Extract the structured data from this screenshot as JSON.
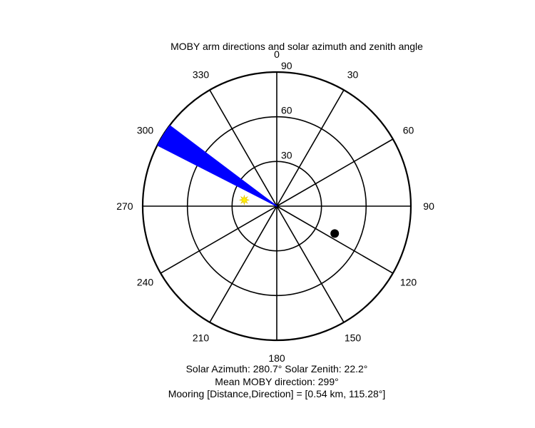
{
  "chart_data": {
    "type": "polar",
    "title": "MOBY arm directions and solar azimuth and zenith angle",
    "angle_convention": "clockwise from north (top)",
    "r_max": 90,
    "radial_ticks": [
      30,
      60,
      90
    ],
    "radial_tick_labels": [
      "30",
      "60",
      "90"
    ],
    "angle_ticks": [
      0,
      30,
      60,
      90,
      120,
      150,
      180,
      210,
      240,
      270,
      300,
      330
    ],
    "angle_tick_labels": [
      "0",
      "30",
      "60",
      "90",
      "120",
      "150",
      "180",
      "210",
      "240",
      "270",
      "300",
      "330"
    ],
    "series": [
      {
        "kind": "arm_directions",
        "color": "#0000ff",
        "marker": "lines",
        "direction_range_deg": [
          297,
          307
        ],
        "r": 90
      },
      {
        "kind": "solar_position",
        "color": "#ffee00",
        "marker": "star",
        "azimuth_deg": 280.7,
        "zenith_deg": 22.2
      },
      {
        "kind": "mooring",
        "color": "#000000",
        "marker": "dot",
        "direction_deg": 115.28
      }
    ],
    "footer": {
      "solar_line": "Solar Azimuth: 280.7°    Solar Zenith: 22.2°",
      "moby_line": "Mean MOBY direction: 299°",
      "mooring_line": "Mooring [Distance,Direction] = [0.54 km, 115.28°]"
    },
    "colors": {
      "arms": "#0000ff",
      "sun": "#ffee00",
      "mooring": "#000000",
      "grid": "#000000"
    }
  }
}
